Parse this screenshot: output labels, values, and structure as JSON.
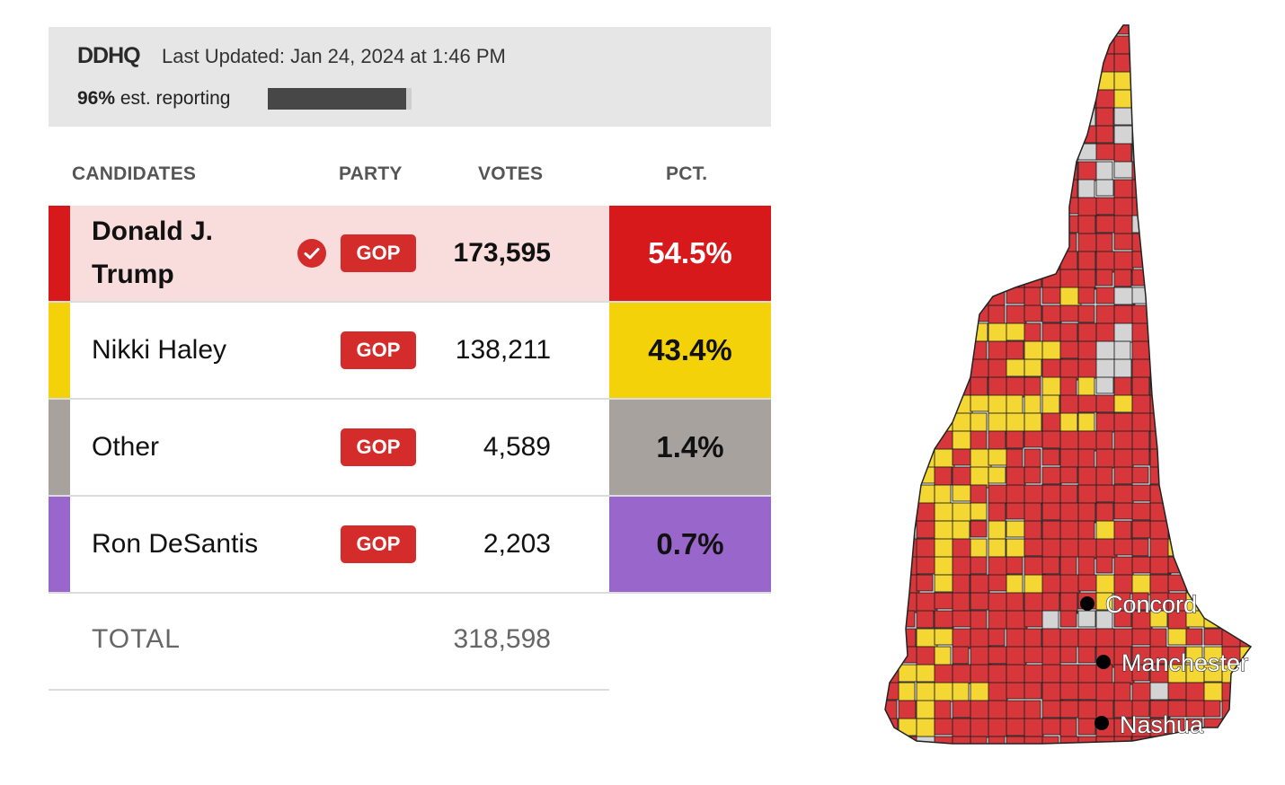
{
  "header": {
    "logo": "DDHQ",
    "last_updated": "Last Updated: Jan 24, 2024 at 1:46 PM",
    "reporting_pct": "96%",
    "reporting_label": "est. reporting",
    "reporting_fraction": 0.96
  },
  "columns": {
    "candidates": "CANDIDATES",
    "party": "PARTY",
    "votes": "VOTES",
    "pct": "PCT."
  },
  "candidates": [
    {
      "name": "Donald J. Trump",
      "party": "GOP",
      "votes": "173,595",
      "pct": "54.5%",
      "color": "#d7191c",
      "winner": true
    },
    {
      "name": "Nikki Haley",
      "party": "GOP",
      "votes": "138,211",
      "pct": "43.4%",
      "color": "#f4d20a",
      "winner": false
    },
    {
      "name": "Other",
      "party": "GOP",
      "votes": "4,589",
      "pct": "1.4%",
      "color": "#a8a29e",
      "winner": false
    },
    {
      "name": "Ron DeSantis",
      "party": "GOP",
      "votes": "2,203",
      "pct": "0.7%",
      "color": "#9966cc",
      "winner": false
    }
  ],
  "total": {
    "label": "TOTAL",
    "votes": "318,598"
  },
  "map": {
    "colors": {
      "trump": "#d7373a",
      "haley": "#f5d734",
      "unreported": "#d4d4d4",
      "border": "#222222"
    },
    "cities": [
      {
        "name": "Concord"
      },
      {
        "name": "Manchester"
      },
      {
        "name": "Nashua"
      }
    ]
  }
}
